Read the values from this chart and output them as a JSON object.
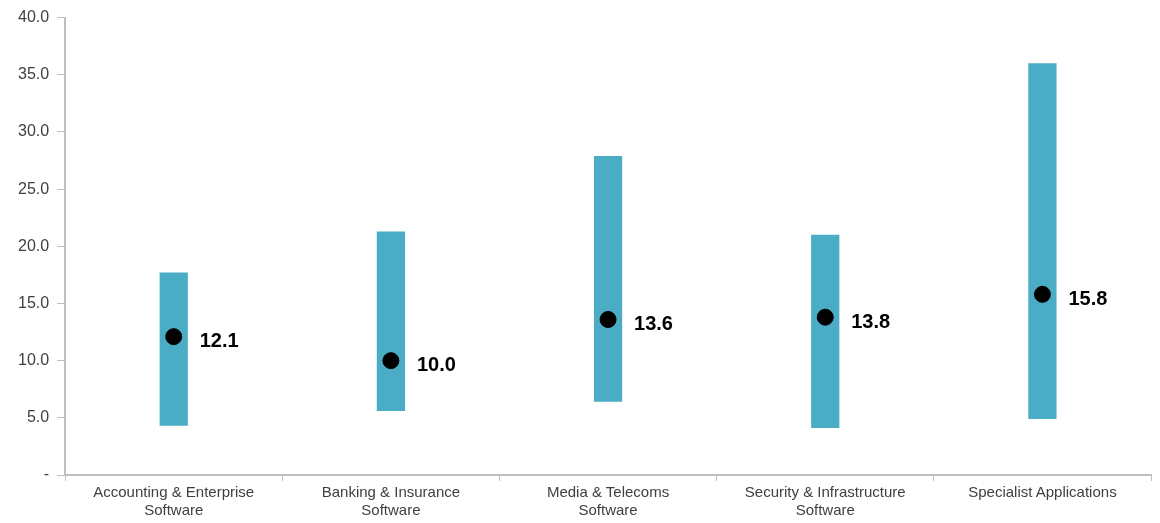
{
  "chart_data": {
    "type": "bar",
    "categories": [
      "Accounting & Enterprise Software",
      "Banking & Insurance Software",
      "Media & Telecoms Software",
      "Security & Infrastructure Software",
      "Specialist Applications"
    ],
    "series": [
      {
        "color": "#4bacc6",
        "base": [
          4.3,
          5.6,
          6.4,
          4.1,
          4.9
        ],
        "values": [
          13.4,
          15.7,
          21.5,
          16.9,
          31.1
        ]
      },
      {
        "type": "scatter",
        "color": "#000000",
        "x": [
          "Accounting & Enterprise Software",
          "Banking & Insurance Software",
          "Media & Telecoms Software",
          "Security & Infrastructure Software",
          "Specialist Applications"
        ],
        "values": [
          12.1,
          10.0,
          13.6,
          13.8,
          15.8
        ],
        "value_labels": [
          "12.1",
          "10.0",
          "13.6",
          "13.8",
          "15.8"
        ]
      }
    ],
    "marker": "circle",
    "ylim": [
      0,
      40
    ],
    "yticks": [
      {
        "value": 0,
        "label": "-"
      },
      {
        "value": 5,
        "label": "5.0"
      },
      {
        "value": 10,
        "label": "10.0"
      },
      {
        "value": 15,
        "label": "15.0"
      },
      {
        "value": 20,
        "label": "20.0"
      },
      {
        "value": 25,
        "label": "25.0"
      },
      {
        "value": 30,
        "label": "30.0"
      },
      {
        "value": 35,
        "label": "35.0"
      },
      {
        "value": 40,
        "label": "40.0"
      }
    ],
    "grid": false,
    "legend": false
  }
}
